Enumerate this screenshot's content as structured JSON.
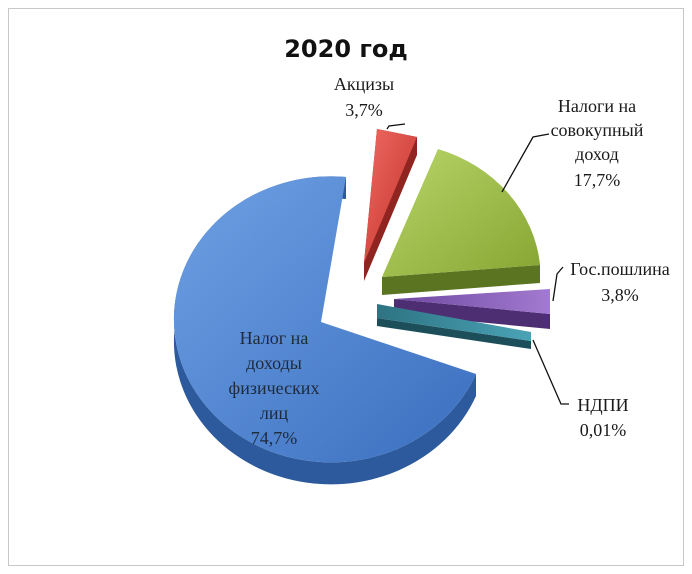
{
  "chart_data": {
    "type": "pie",
    "title": "2020 год",
    "slices": [
      {
        "name": "Акцизы",
        "value": 3.7,
        "value_label": "3,7%",
        "label_lines": [
          "Акцизы"
        ],
        "color": "#d9403a"
      },
      {
        "name": "Налоги на совокупный доход",
        "value": 17.7,
        "value_label": "17,7%",
        "label_lines": [
          "Налоги на",
          "совокупный",
          "доход"
        ],
        "color": "#9bbb3b"
      },
      {
        "name": "Гос.пошлина",
        "value": 3.8,
        "value_label": "3,8%",
        "label_lines": [
          "Гос.пошлина"
        ],
        "color": "#8a5cb8"
      },
      {
        "name": "НДПИ",
        "value": 0.01,
        "value_label": "0,01%",
        "label_lines": [
          "НДПИ"
        ],
        "color": "#3a8e9e"
      },
      {
        "name": "Налог на доходы физических лиц",
        "value": 74.7,
        "value_label": "74,7%",
        "label_lines": [
          "Налог на",
          "доходы",
          "физических",
          "лиц"
        ],
        "color": "#4a7fcf"
      }
    ],
    "style": "3d-exploded"
  }
}
